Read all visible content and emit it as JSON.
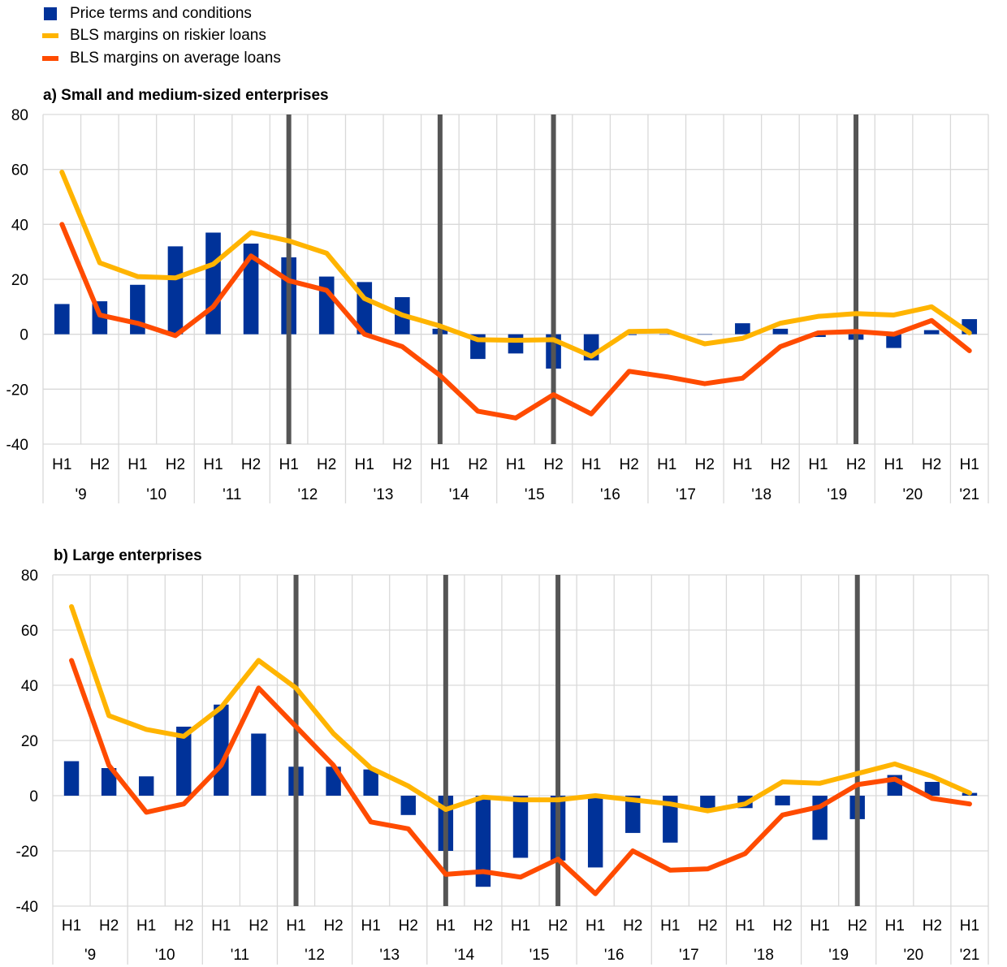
{
  "legend": [
    {
      "label": "Price terms and conditions",
      "type": "bar",
      "color": "#003299"
    },
    {
      "label": "BLS margins on riskier loans",
      "type": "line",
      "color": "#FFB400"
    },
    {
      "label": "BLS margins on average loans",
      "type": "line",
      "color": "#FF4B00"
    }
  ],
  "marker_color": "#555555",
  "chart_data": [
    {
      "type": "bar",
      "title": "a) Small and medium-sized enterprises",
      "ylim": [
        -40,
        80
      ],
      "yticks": [
        80,
        60,
        40,
        20,
        0,
        -20,
        -40
      ],
      "grid": true,
      "legend_position": "top-left",
      "categories": [
        "H1",
        "H2",
        "H1",
        "H2",
        "H1",
        "H2",
        "H1",
        "H2",
        "H1",
        "H2",
        "H1",
        "H2",
        "H1",
        "H2",
        "H1",
        "H2",
        "H1",
        "H2",
        "H1",
        "H2",
        "H1",
        "H2",
        "H1",
        "H2",
        "H1"
      ],
      "years": [
        "'9",
        "'10",
        "'11",
        "'12",
        "'13",
        "'14",
        "'15",
        "'16",
        "'17",
        "'18",
        "'19",
        "'20",
        "'21"
      ],
      "vertical_markers": [
        6,
        10,
        13,
        21
      ],
      "series": [
        {
          "name": "Price terms and conditions",
          "type": "bar",
          "values": [
            11,
            12,
            18,
            32,
            37,
            33,
            28,
            21,
            19,
            13.5,
            2,
            -9,
            -7,
            -12.5,
            -9.5,
            -0.3,
            0,
            0,
            4,
            2,
            -1,
            -2,
            -5,
            1.5,
            5.5
          ]
        },
        {
          "name": "BLS margins on riskier loans",
          "type": "line",
          "values": [
            59,
            26,
            21,
            20.5,
            25.5,
            37,
            34,
            29.5,
            13,
            7,
            3,
            -2,
            -2.2,
            -2,
            -8,
            1,
            1.2,
            -3.5,
            -1.5,
            4,
            6.5,
            7.5,
            7,
            10,
            0.5
          ]
        },
        {
          "name": "BLS margins on average loans",
          "type": "line",
          "values": [
            40,
            7,
            4,
            -0.5,
            10,
            28.5,
            19.5,
            16,
            0,
            -4.5,
            -15,
            -28,
            -30.5,
            -22,
            -29,
            -13.5,
            -15.5,
            -18,
            -16,
            -4.5,
            0.5,
            1,
            0,
            5,
            -6
          ]
        }
      ]
    },
    {
      "type": "bar",
      "title": "b) Large enterprises",
      "ylim": [
        -40,
        80
      ],
      "yticks": [
        80,
        60,
        40,
        20,
        0,
        -20,
        -40
      ],
      "grid": true,
      "categories": [
        "H1",
        "H2",
        "H1",
        "H2",
        "H1",
        "H2",
        "H1",
        "H2",
        "H1",
        "H2",
        "H1",
        "H2",
        "H1",
        "H2",
        "H1",
        "H2",
        "H1",
        "H2",
        "H1",
        "H2",
        "H1",
        "H2",
        "H1",
        "H2",
        "H1"
      ],
      "years": [
        "'9",
        "'10",
        "'11",
        "'12",
        "'13",
        "'14",
        "'15",
        "'16",
        "'17",
        "'18",
        "'19",
        "'20",
        "'21"
      ],
      "vertical_markers": [
        6,
        10,
        13,
        21
      ],
      "series": [
        {
          "name": "Price terms and conditions",
          "type": "bar",
          "values": [
            12.5,
            10,
            7,
            25,
            33,
            22.5,
            10.5,
            10.5,
            9.5,
            -7,
            -20,
            -33,
            -22.5,
            -23.5,
            -26,
            -13.5,
            -17,
            -4.5,
            -4.5,
            -3.5,
            -16,
            -8.5,
            7.5,
            5,
            1
          ]
        },
        {
          "name": "BLS margins on riskier loans",
          "type": "line",
          "values": [
            68.5,
            29,
            24,
            21.5,
            32,
            49,
            39,
            22.5,
            10,
            3.5,
            -5,
            -0.5,
            -1.5,
            -1.5,
            0,
            -1.5,
            -3,
            -5.5,
            -3,
            5,
            4.5,
            8,
            11.5,
            7,
            1
          ]
        },
        {
          "name": "BLS margins on average loans",
          "type": "line",
          "values": [
            49,
            11,
            -6,
            -3,
            11,
            39,
            25,
            11,
            -9.5,
            -12,
            -28.5,
            -27.5,
            -29.5,
            -23,
            -35.5,
            -20,
            -27,
            -26.5,
            -21,
            -7,
            -4,
            4,
            6,
            -1,
            -3
          ]
        }
      ]
    }
  ]
}
